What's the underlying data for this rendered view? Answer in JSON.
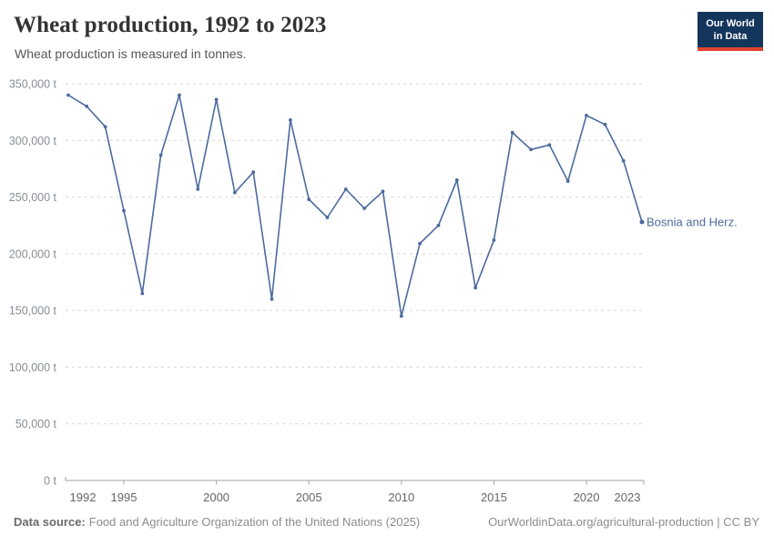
{
  "header": {
    "title": "Wheat production, 1992 to 2023",
    "subtitle": "Wheat production is measured in tonnes.",
    "logo": {
      "line1": "Our World",
      "line2": "in Data"
    }
  },
  "chart_data": {
    "type": "line",
    "title": "Wheat production, 1992 to 2023",
    "subtitle": "Wheat production is measured in tonnes.",
    "series": [
      {
        "name": "Bosnia and Herz.",
        "x": [
          1992,
          1993,
          1994,
          1995,
          1996,
          1997,
          1998,
          1999,
          2000,
          2001,
          2002,
          2003,
          2004,
          2005,
          2006,
          2007,
          2008,
          2009,
          2010,
          2011,
          2012,
          2013,
          2014,
          2015,
          2016,
          2017,
          2018,
          2019,
          2020,
          2021,
          2022,
          2023
        ],
        "values": [
          340000,
          330000,
          312000,
          238000,
          165000,
          287000,
          340000,
          257000,
          336000,
          254000,
          272000,
          160000,
          318000,
          248000,
          232000,
          257000,
          240000,
          255000,
          145000,
          209000,
          225000,
          265000,
          170000,
          212000,
          307000,
          292000,
          296000,
          264000,
          322000,
          314000,
          282000,
          228000
        ]
      }
    ],
    "unit": "t",
    "xlim": [
      1992,
      2023
    ],
    "ylim": [
      0,
      350000
    ],
    "y_ticks": [
      0,
      50000,
      100000,
      150000,
      200000,
      250000,
      300000,
      350000
    ],
    "x_ticks": [
      1992,
      1995,
      2000,
      2005,
      2010,
      2015,
      2020,
      2023
    ],
    "grid": true,
    "legend_position": "end-of-line-label",
    "end_label": "Bosnia and Herz."
  },
  "colors": {
    "line": "#4c6a9e",
    "grid": "#d6d6d6",
    "axis": "#a3a3a3",
    "logo_navy": "#14355c",
    "logo_red": "#e0432e"
  },
  "footer": {
    "source_label": "Data source:",
    "source_text": "Food and Agriculture Organization of the United Nations (2025)",
    "url_text": "OurWorldinData.org/agricultural-production | CC BY"
  }
}
